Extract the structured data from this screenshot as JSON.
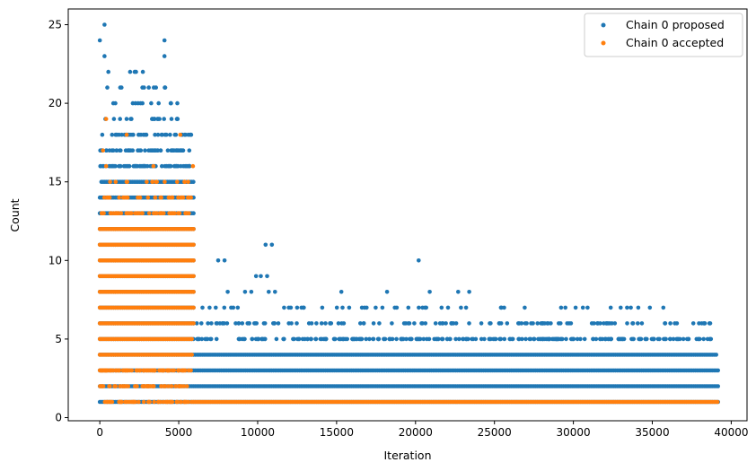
{
  "chart_data": {
    "type": "scatter",
    "title": "",
    "xlabel": "Iteration",
    "ylabel": "Count",
    "xlim": [
      -2000,
      41000
    ],
    "ylim": [
      -0.2,
      26
    ],
    "x_ticks": [
      0,
      5000,
      10000,
      15000,
      20000,
      25000,
      30000,
      35000,
      40000
    ],
    "x_tick_labels": [
      "0",
      "5000",
      "10000",
      "15000",
      "20000",
      "25000",
      "30000",
      "35000",
      "40000"
    ],
    "y_ticks": [
      0,
      5,
      10,
      15,
      20,
      25
    ],
    "y_tick_labels": [
      "0",
      "5",
      "10",
      "15",
      "20",
      "25"
    ],
    "legend_position": "top-right",
    "series": [
      {
        "name": "Chain 0 proposed",
        "color": "#1f77b4",
        "dense_runs": [
          {
            "y": 1,
            "x_start": 0,
            "x_end": 39200
          },
          {
            "y": 2,
            "x_start": 0,
            "x_end": 39200
          },
          {
            "y": 3,
            "x_start": 0,
            "x_end": 39200
          },
          {
            "y": 4,
            "x_start": 0,
            "x_end": 39100
          },
          {
            "y": 5,
            "x_start": 0,
            "x_end": 6000
          },
          {
            "y": 6,
            "x_start": 0,
            "x_end": 6000
          },
          {
            "y": 7,
            "x_start": 0,
            "x_end": 6000
          },
          {
            "y": 8,
            "x_start": 0,
            "x_end": 6000
          },
          {
            "y": 9,
            "x_start": 0,
            "x_end": 6000
          },
          {
            "y": 10,
            "x_start": 0,
            "x_end": 6000
          },
          {
            "y": 11,
            "x_start": 0,
            "x_end": 6000
          },
          {
            "y": 12,
            "x_start": 0,
            "x_end": 6000
          },
          {
            "y": 13,
            "x_start": 0,
            "x_end": 6000
          },
          {
            "y": 14,
            "x_start": 0,
            "x_end": 6000
          },
          {
            "y": 15,
            "x_start": 100,
            "x_end": 6000
          }
        ],
        "sparse_runs": [
          {
            "y": 5,
            "x_start": 6000,
            "x_end": 38800,
            "count": 260
          },
          {
            "y": 6,
            "x_start": 6000,
            "x_end": 38900,
            "count": 120
          },
          {
            "y": 7,
            "x_start": 6000,
            "x_end": 36000,
            "count": 40
          },
          {
            "y": 16,
            "x_start": 0,
            "x_end": 5900,
            "count": 75
          },
          {
            "y": 17,
            "x_start": 0,
            "x_end": 5800,
            "count": 60
          },
          {
            "y": 18,
            "x_start": 100,
            "x_end": 5800,
            "count": 40
          },
          {
            "y": 19,
            "x_start": 300,
            "x_end": 5100,
            "count": 18
          },
          {
            "y": 20,
            "x_start": 200,
            "x_end": 5000,
            "count": 12
          },
          {
            "y": 21,
            "x_start": 200,
            "x_end": 4500,
            "count": 10
          },
          {
            "y": 22,
            "x_start": 100,
            "x_end": 5100,
            "count": 5
          }
        ],
        "points": [
          [
            300,
            25
          ],
          [
            0,
            24
          ],
          [
            4100,
            24
          ],
          [
            300,
            23
          ],
          [
            4100,
            23
          ],
          [
            7500,
            10
          ],
          [
            7900,
            10
          ],
          [
            10500,
            11
          ],
          [
            10900,
            11
          ],
          [
            20200,
            10
          ],
          [
            9900,
            9
          ],
          [
            10200,
            9
          ],
          [
            10600,
            9
          ],
          [
            8100,
            8
          ],
          [
            9600,
            8
          ],
          [
            10700,
            8
          ],
          [
            11100,
            8
          ],
          [
            15300,
            8
          ],
          [
            18200,
            8
          ],
          [
            20900,
            8
          ],
          [
            22700,
            8
          ],
          [
            23400,
            8
          ],
          [
            9200,
            8
          ],
          [
            12900,
            7
          ],
          [
            15800,
            7
          ],
          [
            17900,
            7
          ],
          [
            20600,
            7
          ],
          [
            23200,
            7
          ],
          [
            30900,
            7
          ],
          [
            33400,
            7
          ],
          [
            35700,
            7
          ],
          [
            12100,
            7
          ],
          [
            16900,
            7
          ],
          [
            25800,
            6
          ],
          [
            28400,
            6
          ],
          [
            31300,
            6
          ],
          [
            37600,
            6
          ]
        ]
      },
      {
        "name": "Chain 0 accepted",
        "color": "#ff7f0e",
        "dense_runs": [
          {
            "y": 1,
            "x_start": 5800,
            "x_end": 39200
          },
          {
            "y": 4,
            "x_start": 0,
            "x_end": 5900
          },
          {
            "y": 5,
            "x_start": 0,
            "x_end": 5900
          },
          {
            "y": 6,
            "x_start": 0,
            "x_end": 6000
          },
          {
            "y": 7,
            "x_start": 0,
            "x_end": 6000
          },
          {
            "y": 8,
            "x_start": 0,
            "x_end": 6000
          },
          {
            "y": 9,
            "x_start": 0,
            "x_end": 6000
          },
          {
            "y": 10,
            "x_start": 0,
            "x_end": 6000
          },
          {
            "y": 11,
            "x_start": 0,
            "x_end": 6000
          },
          {
            "y": 12,
            "x_start": 0,
            "x_end": 6000
          }
        ],
        "sparse_runs": [
          {
            "y": 1,
            "x_start": 0,
            "x_end": 5800,
            "count": 45
          },
          {
            "y": 2,
            "x_start": 0,
            "x_end": 5700,
            "count": 55
          },
          {
            "y": 3,
            "x_start": 0,
            "x_end": 5900,
            "count": 90
          },
          {
            "y": 13,
            "x_start": 0,
            "x_end": 5900,
            "count": 50
          },
          {
            "y": 14,
            "x_start": 200,
            "x_end": 5800,
            "count": 28
          },
          {
            "y": 15,
            "x_start": 200,
            "x_end": 5700,
            "count": 12
          }
        ],
        "points": [
          [
            400,
            19
          ],
          [
            200,
            17
          ],
          [
            400,
            16
          ],
          [
            3400,
            16
          ],
          [
            5900,
            16
          ],
          [
            1700,
            18
          ],
          [
            5100,
            18
          ],
          [
            2400,
            14
          ],
          [
            4900,
            15
          ],
          [
            5600,
            15
          ]
        ]
      }
    ]
  }
}
